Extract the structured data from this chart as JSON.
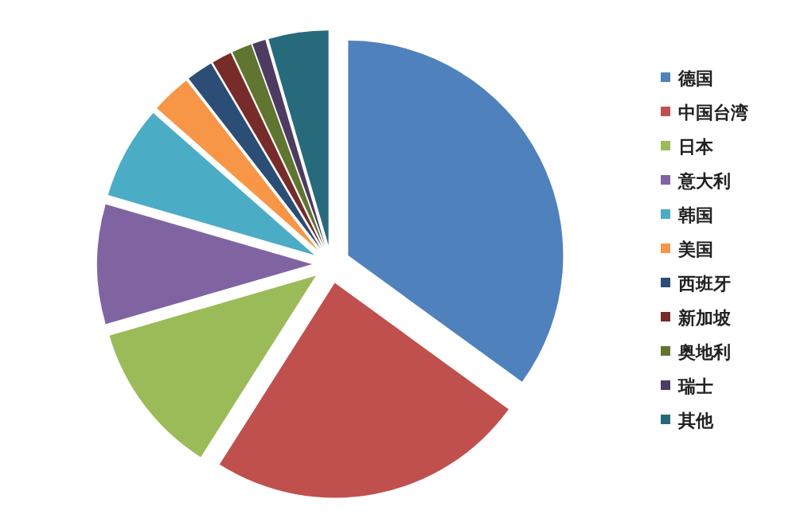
{
  "chart_data": {
    "type": "pie",
    "categories": [
      "德国",
      "中国台湾",
      "日本",
      "意大利",
      "韩国",
      "美国",
      "西班牙",
      "新加坡",
      "奥地利",
      "瑞士",
      "其他"
    ],
    "values": [
      35,
      24,
      11.5,
      9,
      7,
      3,
      2,
      1.5,
      1.5,
      1,
      4.5
    ],
    "colors": [
      "#4f81bd",
      "#c0504d",
      "#9bbb59",
      "#8064a2",
      "#4bacc6",
      "#f79646",
      "#2c4d75",
      "#772c2a",
      "#5f7530",
      "#4d3b62",
      "#276a7c"
    ],
    "legend": "right"
  }
}
